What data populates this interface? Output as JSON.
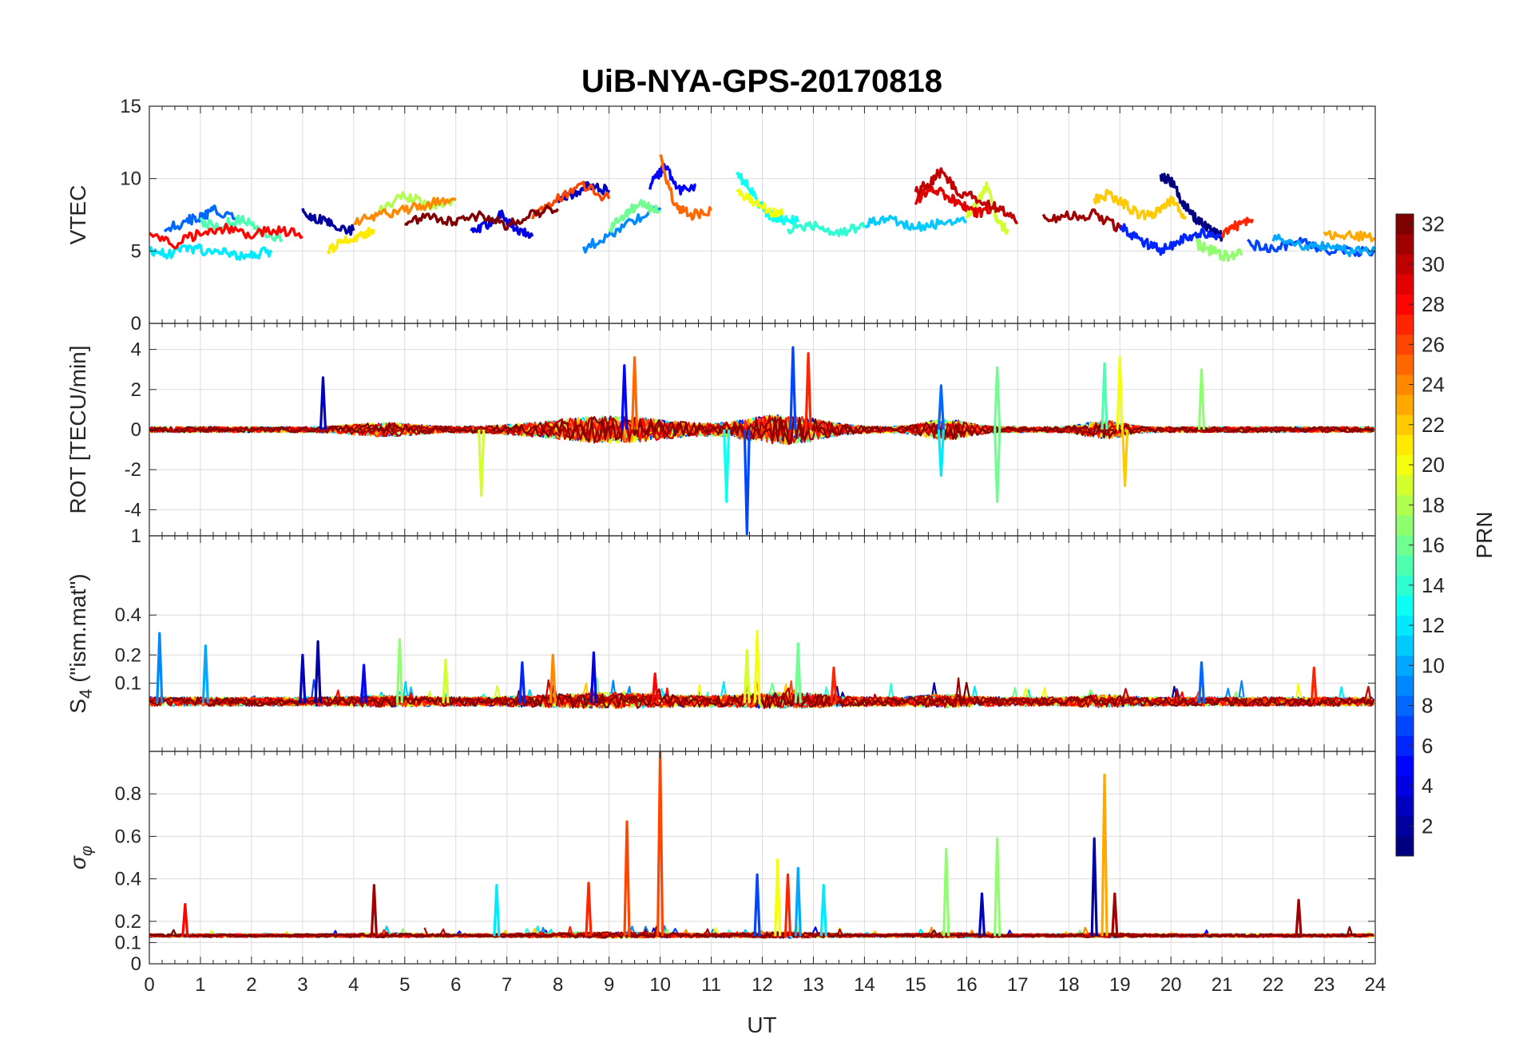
{
  "title": "UiB-NYA-GPS-20170818",
  "xlabel": "UT",
  "colorbar": {
    "label": "PRN",
    "min": 1,
    "max": 32,
    "ticks": [
      2,
      4,
      6,
      8,
      10,
      12,
      14,
      16,
      18,
      20,
      22,
      24,
      26,
      28,
      30,
      32
    ],
    "colormap": "jet"
  },
  "chart_data": [
    {
      "type": "line",
      "panel": "vtec",
      "ylabel": "VTEC",
      "xlim": [
        0,
        24
      ],
      "ylim": [
        0,
        15
      ],
      "xticks": [
        0,
        1,
        2,
        3,
        4,
        5,
        6,
        7,
        8,
        9,
        10,
        11,
        12,
        13,
        14,
        15,
        16,
        17,
        18,
        19,
        20,
        21,
        22,
        23,
        24
      ],
      "yticks": [
        0,
        5,
        10,
        15
      ],
      "grid": true,
      "series": [
        {
          "prn": 1,
          "x": [
            19.8,
            20.0,
            20.2,
            20.4,
            20.6,
            20.8,
            21.0
          ],
          "y": [
            10.2,
            9.8,
            8.6,
            7.5,
            6.9,
            6.3,
            6.0
          ]
        },
        {
          "prn": 2,
          "x": [
            3.0,
            3.3,
            3.6,
            4.0
          ],
          "y": [
            7.6,
            7.2,
            6.8,
            6.4
          ]
        },
        {
          "prn": 3,
          "x": [
            8.0,
            8.3,
            8.6,
            9.0
          ],
          "y": [
            8.5,
            9.0,
            9.5,
            9.2
          ]
        },
        {
          "prn": 4,
          "x": [
            6.3,
            6.6,
            6.9,
            7.2,
            7.5
          ],
          "y": [
            6.2,
            6.8,
            7.5,
            6.5,
            6.0
          ]
        },
        {
          "prn": 5,
          "x": [
            9.8,
            10.1,
            10.4,
            10.7
          ],
          "y": [
            9.5,
            10.8,
            9.2,
            9.6
          ]
        },
        {
          "prn": 6,
          "x": [
            19.0,
            19.3,
            19.6,
            19.8,
            20.2,
            20.6,
            21.0
          ],
          "y": [
            6.8,
            6.0,
            5.4,
            5.0,
            5.8,
            6.3,
            6.0
          ]
        },
        {
          "prn": 7,
          "x": [
            21.5,
            22.0,
            22.5,
            23.0,
            23.5,
            24.0
          ],
          "y": [
            5.5,
            5.2,
            5.6,
            5.1,
            5.0,
            5.0
          ]
        },
        {
          "prn": 8,
          "x": [
            0.3,
            0.7,
            1.0,
            1.3,
            1.7
          ],
          "y": [
            6.5,
            7.0,
            7.4,
            7.8,
            7.2
          ]
        },
        {
          "prn": 9,
          "x": [
            8.5,
            9.0,
            9.5,
            10.0
          ],
          "y": [
            5.2,
            6.0,
            7.2,
            8.0
          ]
        },
        {
          "prn": 10,
          "x": [
            22.0,
            22.5,
            23.0,
            23.5,
            24.0
          ],
          "y": [
            6.0,
            5.5,
            5.3,
            5.0,
            5.0
          ]
        },
        {
          "prn": 11,
          "x": [
            14.0,
            14.5,
            15.0,
            15.5,
            16.0
          ],
          "y": [
            6.8,
            7.2,
            6.6,
            6.9,
            7.0
          ]
        },
        {
          "prn": 12,
          "x": [
            0,
            0.4,
            0.8,
            1.2,
            1.6,
            2.0,
            2.4
          ],
          "y": [
            5.0,
            4.8,
            5.2,
            5.0,
            4.8,
            4.7,
            5.0
          ]
        },
        {
          "prn": 13,
          "x": [
            11.5,
            11.8,
            12.1,
            12.4,
            12.7
          ],
          "y": [
            10.5,
            9.0,
            7.5,
            7.2,
            7.0
          ]
        },
        {
          "prn": 14,
          "x": [
            12.5,
            13.0,
            13.5,
            14.0
          ],
          "y": [
            6.5,
            6.8,
            6.3,
            6.6
          ]
        },
        {
          "prn": 15,
          "x": [
            1.0,
            1.4,
            1.8,
            2.2,
            2.6
          ],
          "y": [
            7.0,
            6.8,
            7.2,
            6.4,
            5.8
          ]
        },
        {
          "prn": 16,
          "x": [
            9.0,
            9.3,
            9.6,
            10.0
          ],
          "y": [
            6.5,
            7.5,
            8.2,
            7.8
          ]
        },
        {
          "prn": 17,
          "x": [
            20.5,
            20.8,
            21.1,
            21.4
          ],
          "y": [
            5.5,
            5.0,
            4.6,
            4.8
          ]
        },
        {
          "prn": 18,
          "x": [
            4.5,
            5.0,
            5.5,
            6.0
          ],
          "y": [
            8.0,
            8.8,
            8.2,
            8.5
          ]
        },
        {
          "prn": 19,
          "x": [
            16.0,
            16.2,
            16.4,
            16.6,
            16.8
          ],
          "y": [
            7.5,
            8.2,
            9.6,
            7.0,
            6.5
          ]
        },
        {
          "prn": 20,
          "x": [
            11.5,
            11.8,
            12.1,
            12.4
          ],
          "y": [
            9.0,
            8.5,
            7.8,
            7.5
          ]
        },
        {
          "prn": 21,
          "x": [
            3.5,
            3.8,
            4.1,
            4.4
          ],
          "y": [
            5.0,
            5.6,
            6.0,
            6.5
          ]
        },
        {
          "prn": 22,
          "x": [
            18.5,
            18.8,
            19.1,
            19.4,
            19.7,
            20.0,
            20.3
          ],
          "y": [
            8.6,
            8.9,
            8.2,
            7.4,
            7.6,
            8.5,
            7.3
          ]
        },
        {
          "prn": 23,
          "x": [
            23.0,
            23.5,
            24.0
          ],
          "y": [
            6.0,
            6.2,
            5.8
          ]
        },
        {
          "prn": 24,
          "x": [
            4.0,
            4.5,
            5.0,
            5.5,
            6.0
          ],
          "y": [
            7.0,
            7.5,
            7.8,
            8.3,
            8.6
          ]
        },
        {
          "prn": 25,
          "x": [
            10.0,
            10.3,
            10.6,
            11.0
          ],
          "y": [
            11.5,
            8.0,
            7.5,
            7.8
          ]
        },
        {
          "prn": 26,
          "x": [
            7.5,
            8.0,
            8.5,
            9.0
          ],
          "y": [
            7.5,
            8.6,
            9.5,
            8.6
          ]
        },
        {
          "prn": 27,
          "x": [
            21.0,
            21.3,
            21.6
          ],
          "y": [
            6.2,
            6.8,
            7.2
          ]
        },
        {
          "prn": 28,
          "x": [
            0,
            0.5,
            1.0,
            1.5,
            2.0,
            2.5,
            3.0
          ],
          "y": [
            6.0,
            5.5,
            6.2,
            6.6,
            6.1,
            6.5,
            6.0
          ]
        },
        {
          "prn": 29,
          "x": [
            15.0,
            15.3,
            15.6,
            15.9,
            16.2,
            16.5
          ],
          "y": [
            8.4,
            9.5,
            8.8,
            8.2,
            7.6,
            7.9
          ]
        },
        {
          "prn": 30,
          "x": [
            15.0,
            15.3,
            15.5,
            15.8,
            16.2,
            16.6,
            17.0
          ],
          "y": [
            9.0,
            9.8,
            10.5,
            9.2,
            8.6,
            8.0,
            7.0
          ]
        },
        {
          "prn": 31,
          "x": [
            17.5,
            18.0,
            18.5,
            19.0
          ],
          "y": [
            7.2,
            7.4,
            7.5,
            6.6
          ]
        },
        {
          "prn": 32,
          "x": [
            5.0,
            5.5,
            6.0,
            6.5,
            7.0,
            7.5,
            8.0
          ],
          "y": [
            7.0,
            7.3,
            7.0,
            7.4,
            6.8,
            7.6,
            7.9
          ]
        }
      ]
    },
    {
      "type": "line",
      "panel": "rot",
      "ylabel": "ROT [TECU/min]",
      "xlim": [
        0,
        24
      ],
      "ylim": [
        -5.3,
        5.3
      ],
      "xticks": [
        0,
        1,
        2,
        3,
        4,
        5,
        6,
        7,
        8,
        9,
        10,
        11,
        12,
        13,
        14,
        15,
        16,
        17,
        18,
        19,
        20,
        21,
        22,
        23,
        24
      ],
      "yticks": [
        -4,
        -2,
        0,
        2,
        4
      ],
      "grid": true,
      "spikes": [
        {
          "prn": 7,
          "x": 11.7,
          "y": -5.2
        },
        {
          "prn": 7,
          "x": 12.6,
          "y": 4.1
        },
        {
          "prn": 5,
          "x": 9.3,
          "y": 3.2
        },
        {
          "prn": 25,
          "x": 9.5,
          "y": 3.6
        },
        {
          "prn": 27,
          "x": 12.9,
          "y": 3.8
        },
        {
          "prn": 13,
          "x": 11.3,
          "y": -3.6
        },
        {
          "prn": 19,
          "x": 6.5,
          "y": -3.3
        },
        {
          "prn": 16,
          "x": 16.6,
          "y": -3.6
        },
        {
          "prn": 16,
          "x": 16.6,
          "y": 3.1
        },
        {
          "prn": 15,
          "x": 18.7,
          "y": 3.3
        },
        {
          "prn": 20,
          "x": 19.0,
          "y": 3.6
        },
        {
          "prn": 22,
          "x": 19.1,
          "y": -2.8
        },
        {
          "prn": 17,
          "x": 20.6,
          "y": 3.0
        },
        {
          "prn": 3,
          "x": 3.4,
          "y": 2.6
        },
        {
          "prn": 8,
          "x": 15.5,
          "y": 2.2
        },
        {
          "prn": 12,
          "x": 15.5,
          "y": -2.3
        }
      ]
    },
    {
      "type": "line",
      "panel": "s4",
      "ylabel": "S4 (\"ism.mat\")",
      "xlim": [
        0,
        24
      ],
      "ylim": [
        0,
        1
      ],
      "yscale": "sqrt",
      "xticks": [
        0,
        1,
        2,
        3,
        4,
        5,
        6,
        7,
        8,
        9,
        10,
        11,
        12,
        13,
        14,
        15,
        16,
        17,
        18,
        19,
        20,
        21,
        22,
        23,
        24
      ],
      "yticks": [
        0.1,
        0.2,
        0.4,
        1
      ],
      "grid": true,
      "spikes": [
        {
          "prn": 9,
          "x": 0.2,
          "y": 0.3
        },
        {
          "prn": 10,
          "x": 1.1,
          "y": 0.24
        },
        {
          "prn": 3,
          "x": 3.0,
          "y": 0.2
        },
        {
          "prn": 2,
          "x": 3.3,
          "y": 0.26
        },
        {
          "prn": 5,
          "x": 4.2,
          "y": 0.16
        },
        {
          "prn": 17,
          "x": 4.9,
          "y": 0.27
        },
        {
          "prn": 19,
          "x": 5.8,
          "y": 0.18
        },
        {
          "prn": 6,
          "x": 7.3,
          "y": 0.17
        },
        {
          "prn": 24,
          "x": 7.9,
          "y": 0.2
        },
        {
          "prn": 4,
          "x": 8.7,
          "y": 0.21
        },
        {
          "prn": 28,
          "x": 9.9,
          "y": 0.13
        },
        {
          "prn": 19,
          "x": 11.7,
          "y": 0.22
        },
        {
          "prn": 20,
          "x": 11.9,
          "y": 0.31
        },
        {
          "prn": 16,
          "x": 12.7,
          "y": 0.25
        },
        {
          "prn": 27,
          "x": 13.4,
          "y": 0.15
        },
        {
          "prn": 8,
          "x": 20.6,
          "y": 0.17
        },
        {
          "prn": 27,
          "x": 22.8,
          "y": 0.15
        }
      ]
    },
    {
      "type": "line",
      "panel": "sigma_phi",
      "ylabel": "σφ",
      "xlim": [
        0,
        24
      ],
      "ylim": [
        0,
        1
      ],
      "xticks": [
        0,
        1,
        2,
        3,
        4,
        5,
        6,
        7,
        8,
        9,
        10,
        11,
        12,
        13,
        14,
        15,
        16,
        17,
        18,
        19,
        20,
        21,
        22,
        23,
        24
      ],
      "yticks": [
        0,
        0.1,
        0.2,
        0.4,
        0.6,
        0.8
      ],
      "grid": true,
      "spikes": [
        {
          "prn": 28,
          "x": 0.7,
          "y": 0.28
        },
        {
          "prn": 31,
          "x": 4.4,
          "y": 0.37
        },
        {
          "prn": 12,
          "x": 6.8,
          "y": 0.37
        },
        {
          "prn": 27,
          "x": 8.6,
          "y": 0.38
        },
        {
          "prn": 26,
          "x": 9.35,
          "y": 0.67
        },
        {
          "prn": 26,
          "x": 10.0,
          "y": 1.0
        },
        {
          "prn": 7,
          "x": 11.9,
          "y": 0.42
        },
        {
          "prn": 20,
          "x": 12.3,
          "y": 0.49
        },
        {
          "prn": 27,
          "x": 12.5,
          "y": 0.42
        },
        {
          "prn": 10,
          "x": 12.7,
          "y": 0.45
        },
        {
          "prn": 12,
          "x": 13.2,
          "y": 0.37
        },
        {
          "prn": 17,
          "x": 15.6,
          "y": 0.54
        },
        {
          "prn": 3,
          "x": 16.3,
          "y": 0.33
        },
        {
          "prn": 17,
          "x": 16.6,
          "y": 0.59
        },
        {
          "prn": 2,
          "x": 18.5,
          "y": 0.59
        },
        {
          "prn": 23,
          "x": 18.7,
          "y": 0.89
        },
        {
          "prn": 31,
          "x": 18.9,
          "y": 0.33
        },
        {
          "prn": 31,
          "x": 22.5,
          "y": 0.3
        }
      ]
    }
  ]
}
